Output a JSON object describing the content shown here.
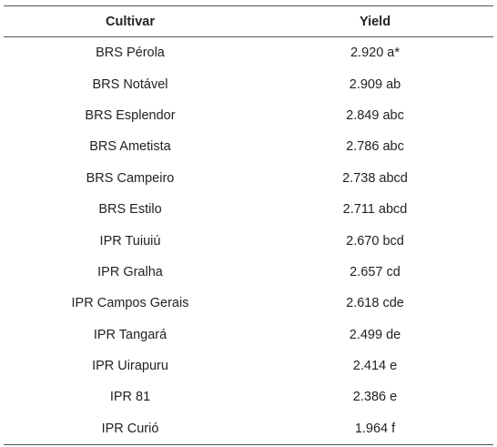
{
  "table": {
    "headers": [
      "Cultivar",
      "Yield"
    ],
    "rows": [
      {
        "cultivar": "BRS Pérola",
        "yield": "2.920 a*"
      },
      {
        "cultivar": "BRS Notável",
        "yield": "2.909 ab"
      },
      {
        "cultivar": "BRS Esplendor",
        "yield": "2.849 abc"
      },
      {
        "cultivar": "BRS Ametista",
        "yield": "2.786 abc"
      },
      {
        "cultivar": "BRS Campeiro",
        "yield": "2.738 abcd"
      },
      {
        "cultivar": "BRS Estilo",
        "yield": "2.711 abcd"
      },
      {
        "cultivar": "IPR Tuiuiú",
        "yield": "2.670 bcd"
      },
      {
        "cultivar": "IPR Gralha",
        "yield": "2.657 cd"
      },
      {
        "cultivar": "IPR Campos Gerais",
        "yield": "2.618 cde"
      },
      {
        "cultivar": "IPR Tangará",
        "yield": "2.499 de"
      },
      {
        "cultivar": "IPR Uirapuru",
        "yield": "2.414 e"
      },
      {
        "cultivar": "IPR 81",
        "yield": "2.386 e"
      },
      {
        "cultivar": "IPR Curió",
        "yield": "1.964 f"
      }
    ]
  }
}
